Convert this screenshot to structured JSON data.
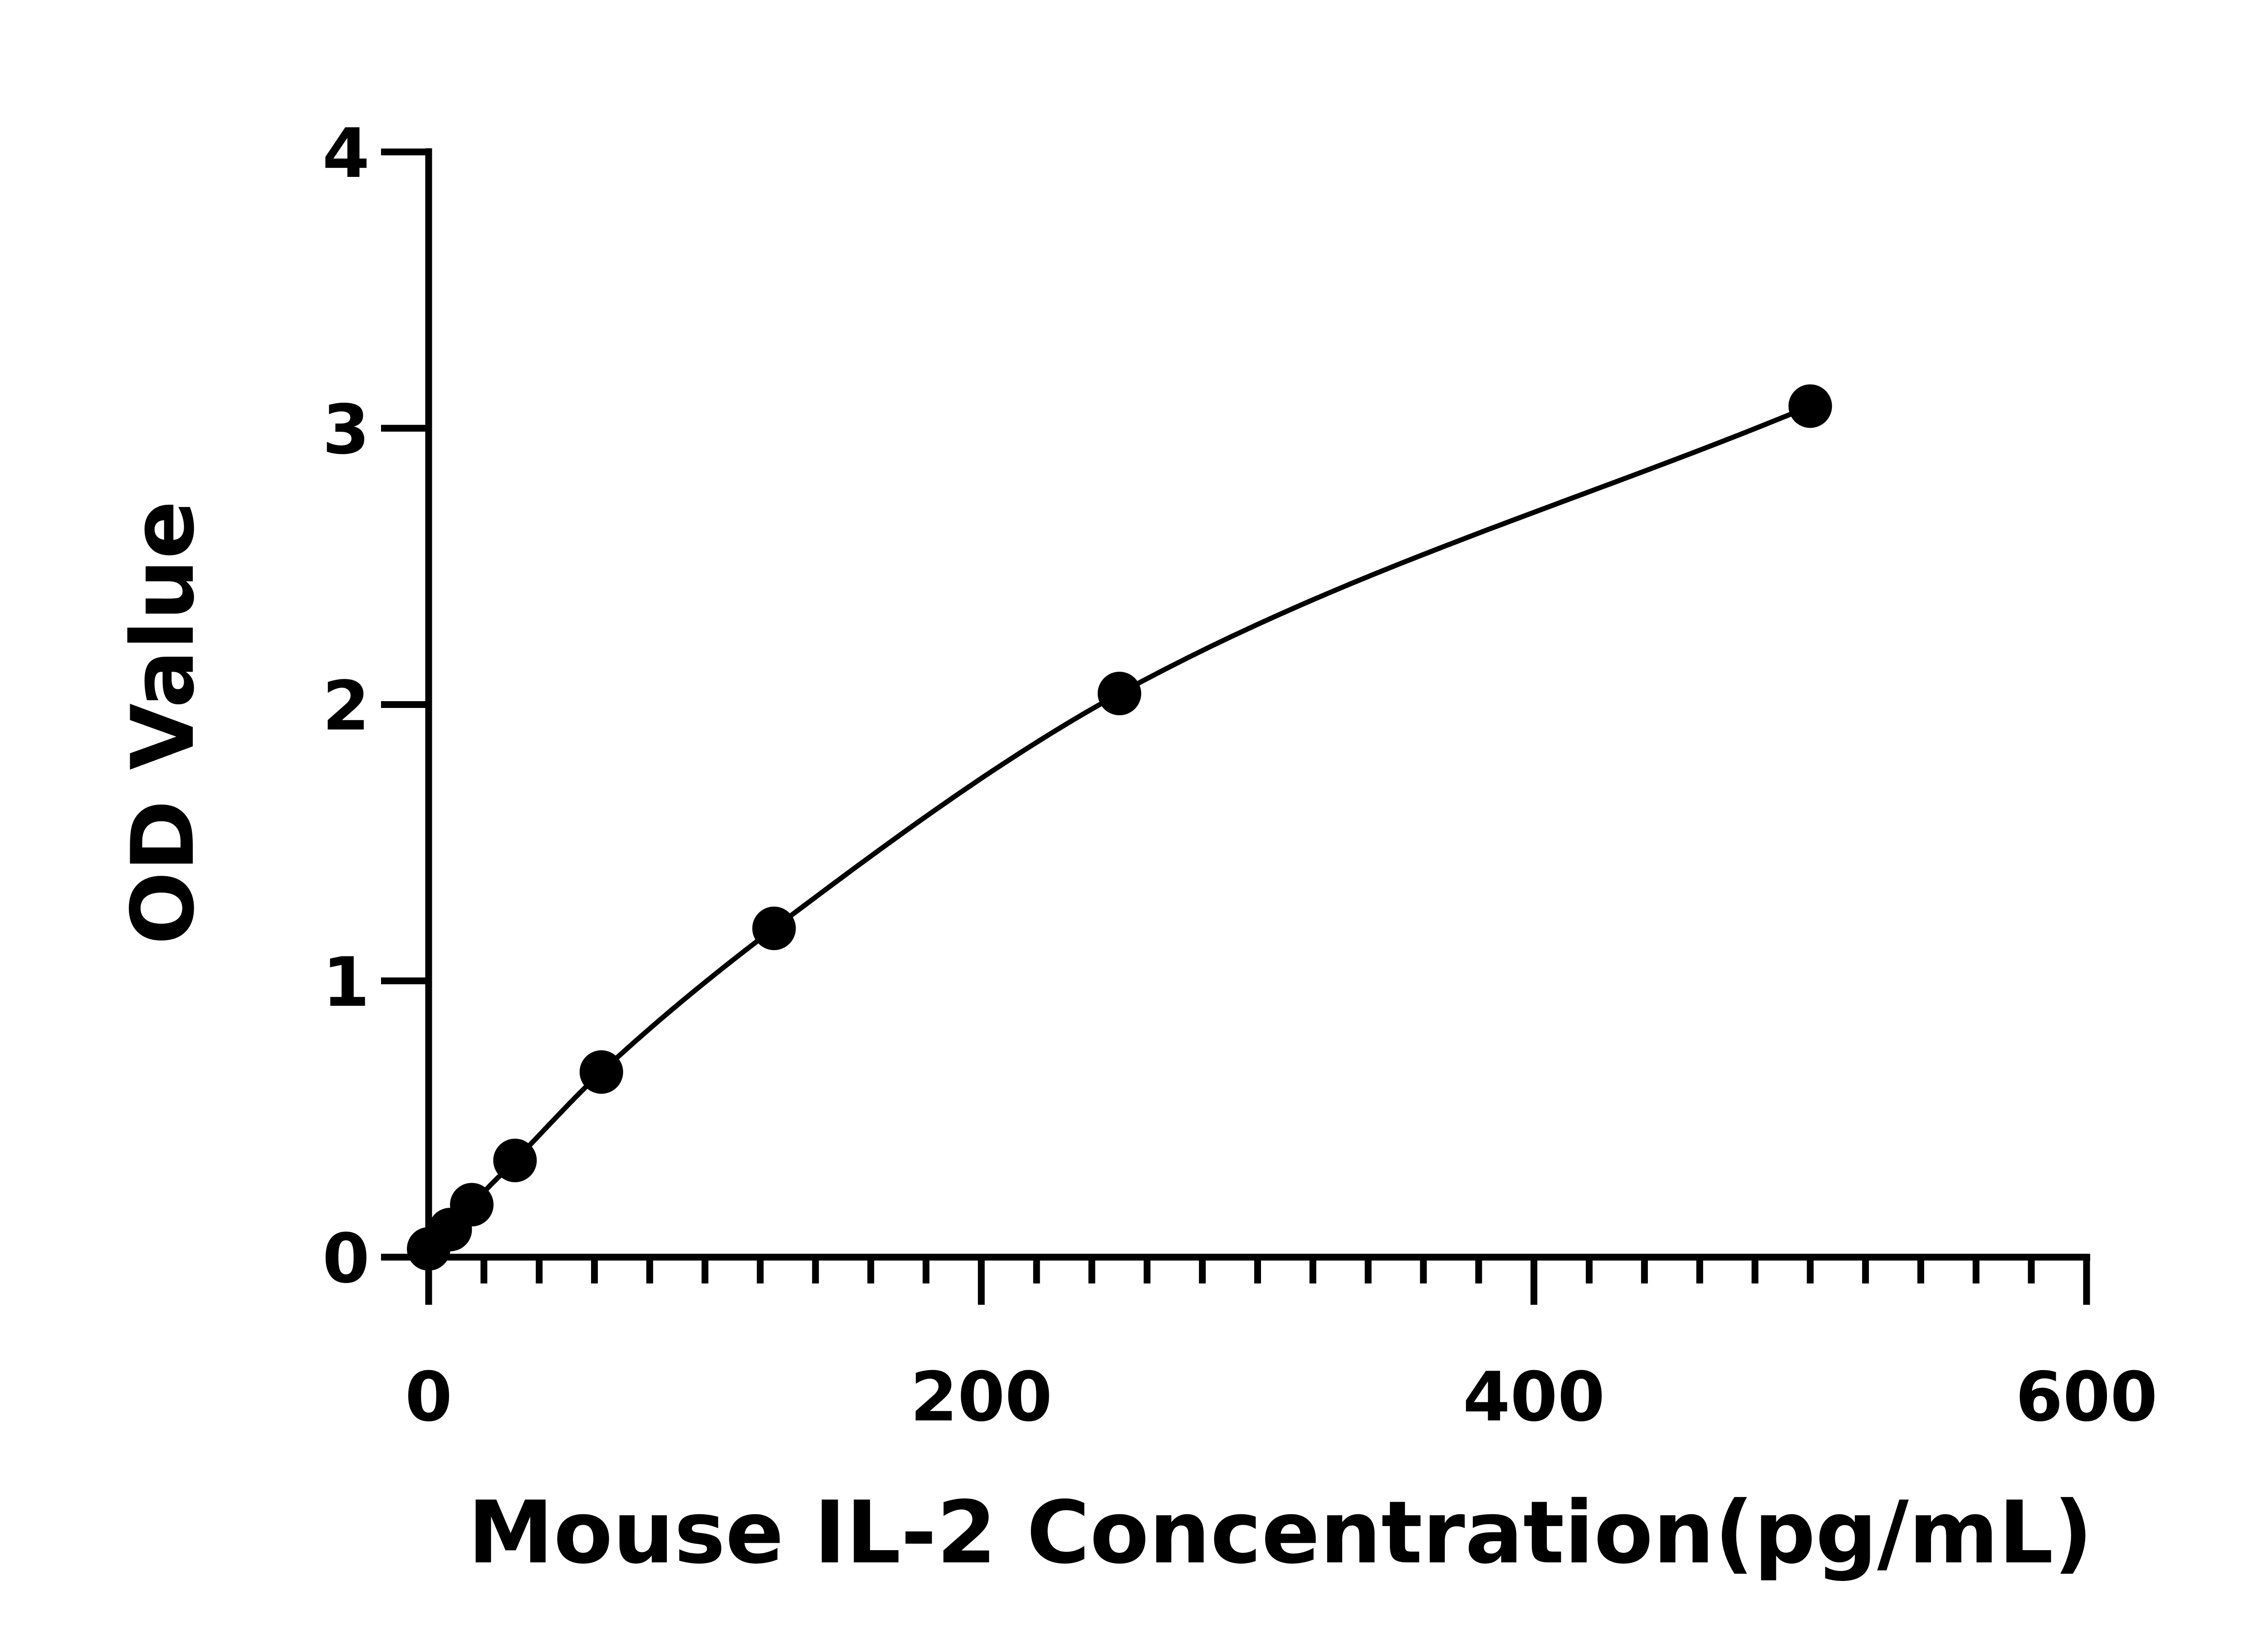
{
  "chart_data": {
    "type": "scatter",
    "xlabel": "Mouse IL-2 Concentration(pg/mL)",
    "ylabel": "OD Value",
    "xlim": [
      0,
      600
    ],
    "ylim": [
      0,
      4
    ],
    "x_ticks": [
      "0",
      "200",
      "400",
      "600"
    ],
    "y_ticks": [
      "0",
      "1",
      "2",
      "3",
      "4"
    ],
    "x_minor_step": 20,
    "grid": false,
    "legend": "none",
    "series": [
      {
        "x": [
          0,
          7.8,
          15.6,
          31.25,
          62.5,
          125,
          250,
          500
        ],
        "y": [
          0.03,
          0.1,
          0.19,
          0.35,
          0.67,
          1.19,
          2.04,
          3.08
        ]
      }
    ],
    "fit_curve": true,
    "colors": {
      "marks": "#000000",
      "background": "#ffffff"
    }
  }
}
